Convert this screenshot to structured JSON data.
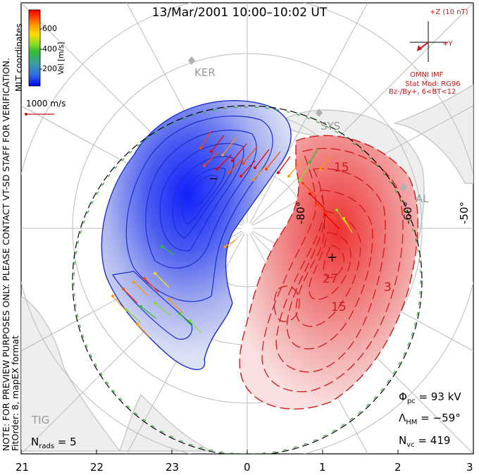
{
  "header": {
    "title": "13/Mar/2001  10:00–10:02  UT"
  },
  "side_text": {
    "note_line1": "NOTE: FOR PREVIEW PURPOSES ONLY. PLEASE CONTACT VT-SD STAFF FOR VERIFICATION.",
    "note_line2": "FitOrder: 8, mapEX format",
    "coordinates": "MLT coordinates"
  },
  "colorbar": {
    "title": "Vel [m/s]",
    "ticks": [
      "600",
      "400",
      "200"
    ],
    "colors": [
      "#0000ff",
      "#2f6fd8",
      "#3aa0a0",
      "#33bb33",
      "#88dd22",
      "#ffdd00",
      "#ff9900",
      "#ff4400",
      "#ee0000"
    ]
  },
  "reference_vector": {
    "label": "1000 m/s",
    "color": "#cc1111"
  },
  "imf": {
    "z_label": "+Z (10 nT)",
    "y_label": "+Y",
    "source": "OMNI IMF",
    "model": "Stat Mod: RG96",
    "condition": "Bz-/By+, 6<BT<12"
  },
  "stations": {
    "ker": "KER",
    "sys": "SYS",
    "al": "AL",
    "tig": "TIG"
  },
  "latitude_labels": {
    "lat80": "-80°",
    "lat60": "-60°",
    "lat50": "-50°"
  },
  "contour_labels": {
    "minus_sign": "−",
    "plus_sign": "+",
    "c15a": "15",
    "c27": "27",
    "c15b": "15",
    "c3": "3"
  },
  "stats": {
    "phi_symbol": "Φ",
    "phi_sub": "pc",
    "phi_value": "= 93 kV",
    "lambda_symbol": "Λ",
    "lambda_sub": "HM",
    "lambda_value": "= −59°",
    "n_symbol": "N",
    "nvc_sub": "vc",
    "nvc_value": "= 419",
    "nrads_sub": "rads",
    "nrads_value": "= 5"
  },
  "mlt_axis": [
    "21",
    "22",
    "23",
    "0",
    "1",
    "2",
    "3"
  ],
  "map_colors": {
    "negative": "#1a2fd0",
    "positive": "#d01a1a",
    "boundary": "#33aa33",
    "grid": "#bbbbbb",
    "land": "#c8c8c8"
  }
}
